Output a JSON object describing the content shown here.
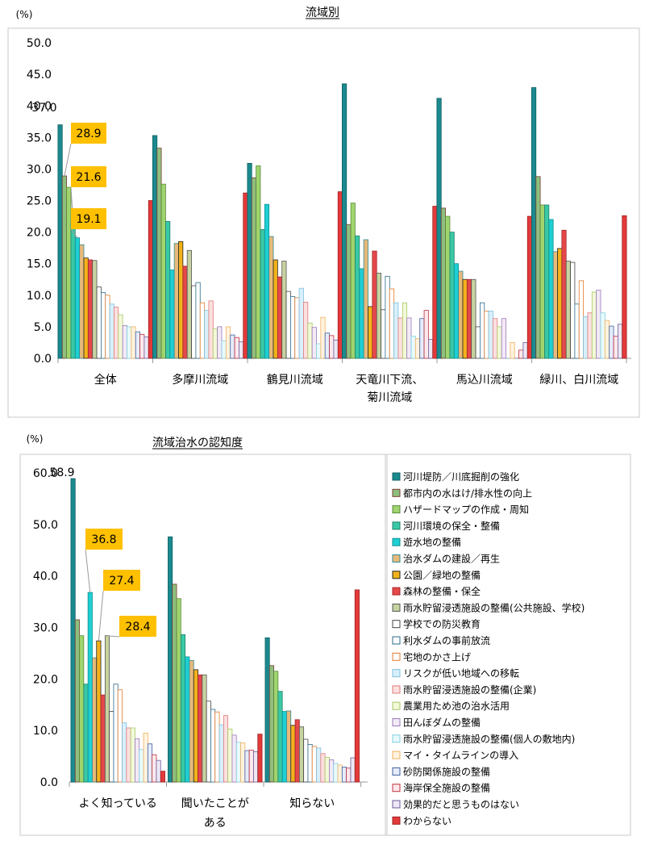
{
  "colors": [
    {
      "fill": "#1b8a8f",
      "stroke": "#0d5e62"
    },
    {
      "fill": "#8fbf7e",
      "stroke": "#7a3c34"
    },
    {
      "fill": "#9fd46e",
      "stroke": "#5a8a3a"
    },
    {
      "fill": "#3ac9a6",
      "stroke": "#1f7f68"
    },
    {
      "fill": "#1ecfd3",
      "stroke": "#0e8f92"
    },
    {
      "fill": "#e7b97a",
      "stroke": "#2e8a96"
    },
    {
      "fill": "#f3b21b",
      "stroke": "#222222"
    },
    {
      "fill": "#e4484b",
      "stroke": "#a52528"
    },
    {
      "fill": "#c7d3a0",
      "stroke": "#555555"
    },
    {
      "fill": "#ffffff",
      "stroke": "#444444"
    },
    {
      "fill": "#ffffff",
      "stroke": "#2a6a8a"
    },
    {
      "fill": "#ffffff",
      "stroke": "#e47a2a"
    },
    {
      "fill": "#d8f0fb",
      "stroke": "#7fbfe0"
    },
    {
      "fill": "#fde0e0",
      "stroke": "#e07878"
    },
    {
      "fill": "#f3f9d8",
      "stroke": "#a7c86a"
    },
    {
      "fill": "#f3eaf8",
      "stroke": "#9a7ab8"
    },
    {
      "fill": "#e8fafc",
      "stroke": "#7fd0dc"
    },
    {
      "fill": "#fff3df",
      "stroke": "#f0b060"
    },
    {
      "fill": "#e6ecfa",
      "stroke": "#3f5f9f"
    },
    {
      "fill": "#fde8ec",
      "stroke": "#c03040"
    },
    {
      "fill": "#ede8f5",
      "stroke": "#6a5a9a"
    },
    {
      "fill": "#e43a3a",
      "stroke": "#a01e1e"
    }
  ],
  "callout_color": "#ffc000",
  "legend": [
    "河川堤防／川底掘削の強化",
    "都市内の水はけ/排水性の向上",
    "ハザードマップの作成・周知",
    "河川環境の保全・整備",
    "遊水地の整備",
    "治水ダムの建設／再生",
    "公園／緑地の整備",
    "森林の整備・保全",
    "雨水貯留浸透施設の整備(公共施設、学校)",
    "学校での防災教育",
    "利水ダムの事前放流",
    "宅地のかさ上げ",
    "リスクが低い地域への移転",
    "雨水貯留浸透施設の整備(企業)",
    "農業用ため池の治水活用",
    "田んぼダムの整備",
    "雨水貯留浸透施設の整備(個人の敷地内)",
    "マイ・タイムラインの導入",
    "砂防関係施設の整備",
    "海岸保全施設の整備",
    "効果的だと思うものはない",
    "わからない"
  ],
  "chart_data": [
    {
      "type": "bar",
      "title": "流域別",
      "ylabel": "(%)",
      "ylim": [
        0,
        50
      ],
      "yticks": [
        "0.0",
        "5.0",
        "10.0",
        "15.0",
        "20.0",
        "25.0",
        "30.0",
        "35.0",
        "40.0",
        "45.0",
        "50.0"
      ],
      "categories": [
        [
          "全体"
        ],
        [
          "多摩川流域"
        ],
        [
          "鶴見川流域"
        ],
        [
          "天竜川下流、",
          "菊川流域"
        ],
        [
          "馬込川流域"
        ],
        [
          "緑川、白川流域"
        ]
      ],
      "groups": [
        [
          37.0,
          28.9,
          27.1,
          21.6,
          19.1,
          18.0,
          15.9,
          15.6,
          15.5,
          11.3,
          10.4,
          10.0,
          8.6,
          8.1,
          6.9,
          5.2,
          5.0,
          5.0,
          4.2,
          3.8,
          3.4,
          25.0
        ],
        [
          35.3,
          33.3,
          27.6,
          21.7,
          14.0,
          18.2,
          18.5,
          14.6,
          17.1,
          11.5,
          12.0,
          8.8,
          7.6,
          9.1,
          4.7,
          5.0,
          2.8,
          5.0,
          3.7,
          3.3,
          2.6,
          26.2
        ],
        [
          30.9,
          28.6,
          30.5,
          20.4,
          24.4,
          19.3,
          15.6,
          12.9,
          15.4,
          10.6,
          9.8,
          9.6,
          11.1,
          8.9,
          5.6,
          4.9,
          2.3,
          6.5,
          4.0,
          3.6,
          2.9,
          26.4
        ],
        [
          43.5,
          21.2,
          24.6,
          19.4,
          14.2,
          18.8,
          8.2,
          17.0,
          13.5,
          7.7,
          13.0,
          11.0,
          8.8,
          6.4,
          8.8,
          6.4,
          3.5,
          3.1,
          6.3,
          7.6,
          3.0,
          24.1
        ],
        [
          41.2,
          23.8,
          22.5,
          20.0,
          15.0,
          13.8,
          12.5,
          12.5,
          12.5,
          5.0,
          8.8,
          7.5,
          7.5,
          6.3,
          5.0,
          6.3,
          0.0,
          2.5,
          0.0,
          1.3,
          2.5,
          22.5
        ],
        [
          42.9,
          28.8,
          24.3,
          24.3,
          22.0,
          16.9,
          17.4,
          20.3,
          15.4,
          15.2,
          8.6,
          12.3,
          6.6,
          7.2,
          10.5,
          10.8,
          7.2,
          6.0,
          5.1,
          3.5,
          5.4,
          22.6
        ]
      ],
      "data_labels": [
        "37.0"
      ],
      "callouts": [
        "28.9",
        "21.6",
        "19.1"
      ]
    },
    {
      "type": "bar",
      "title": "流域治水の認知度",
      "ylabel": "(%)",
      "ylim": [
        0,
        60
      ],
      "yticks": [
        "0.0",
        "10.0",
        "20.0",
        "30.0",
        "40.0",
        "50.0",
        "60.0"
      ],
      "categories": [
        [
          "よく知っている"
        ],
        [
          "聞いたことが",
          "ある"
        ],
        [
          "知らない"
        ]
      ],
      "groups": [
        [
          58.9,
          31.5,
          28.4,
          19.0,
          36.8,
          24.1,
          27.4,
          16.9,
          28.4,
          13.7,
          19.0,
          17.9,
          11.5,
          10.5,
          10.5,
          8.4,
          6.3,
          9.5,
          7.4,
          5.3,
          4.2,
          2.1
        ],
        [
          47.6,
          38.4,
          35.6,
          28.6,
          24.3,
          23.6,
          21.8,
          20.8,
          20.8,
          15.7,
          14.1,
          13.6,
          11.1,
          12.9,
          10.3,
          9.1,
          7.7,
          7.6,
          6.1,
          6.2,
          5.9,
          9.3
        ],
        [
          28.0,
          22.6,
          21.5,
          17.6,
          13.7,
          13.8,
          11.0,
          12.1,
          10.7,
          8.3,
          7.3,
          6.9,
          6.6,
          5.5,
          4.8,
          4.3,
          3.6,
          3.3,
          2.9,
          2.7,
          4.7,
          37.3
        ]
      ],
      "data_labels": [
        "58.9"
      ],
      "callouts": [
        "36.8",
        "27.4",
        "28.4"
      ]
    }
  ]
}
